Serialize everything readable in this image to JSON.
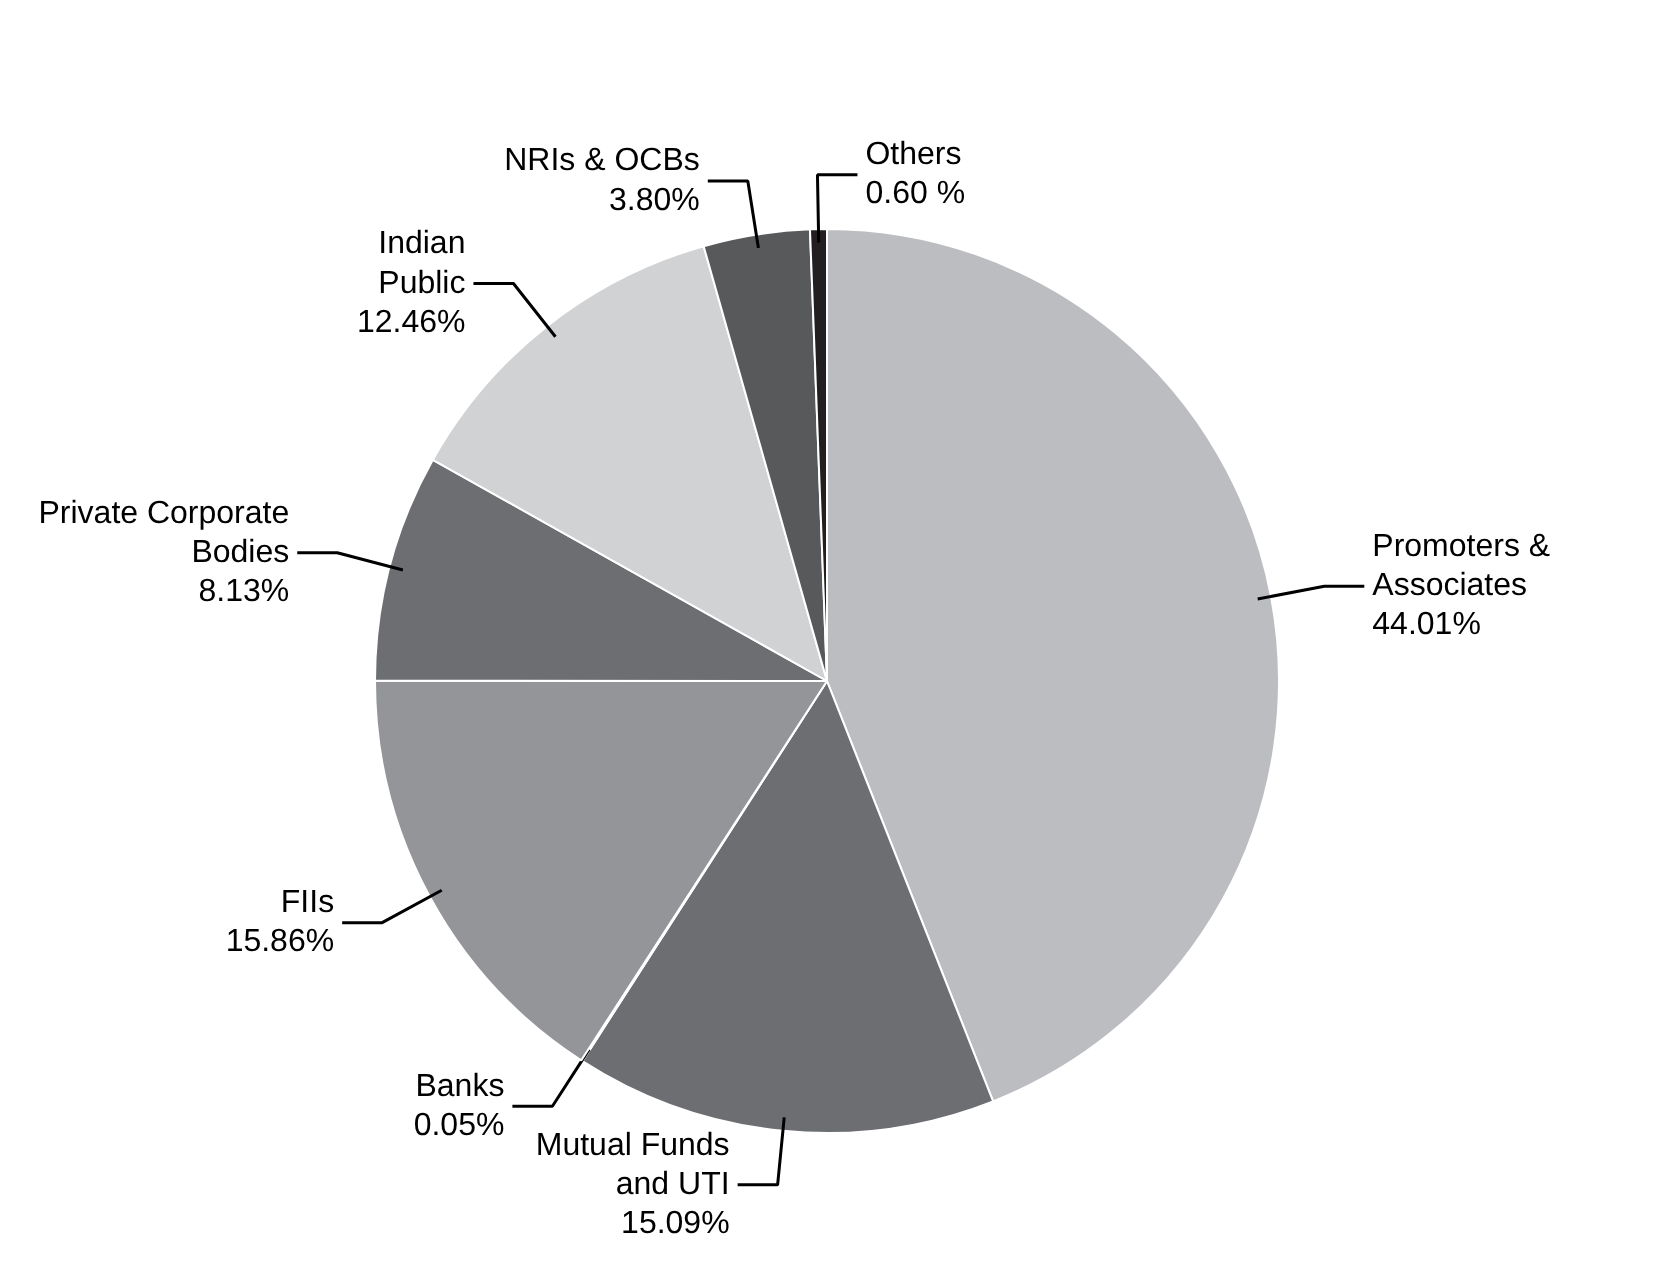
{
  "chart_data": {
    "type": "pie",
    "categories": [
      "Promoters &\nAssociates",
      "Mutual Funds\nand UTI",
      "Banks",
      "FIIs",
      "Private Corporate\nBodies",
      "Indian\nPublic",
      "NRIs & OCBs",
      "Others"
    ],
    "values": [
      44.01,
      15.09,
      0.05,
      15.86,
      8.13,
      12.46,
      3.8,
      0.6
    ],
    "value_labels": [
      "44.01%",
      "15.09%",
      "0.05%",
      "15.86%",
      "8.13%",
      "12.46%",
      "3.80%",
      "0.60 %"
    ],
    "colors": [
      "#bcbdc0",
      "#6d6e71",
      "#58595b",
      "#939598",
      "#6d6e71",
      "#d1d2d4",
      "#58595b",
      "#231f20"
    ]
  }
}
